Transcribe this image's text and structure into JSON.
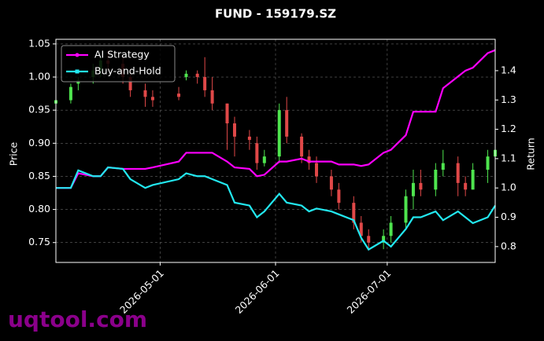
{
  "chart_data": {
    "type": "candlestick",
    "title": "FUND - 159179.SZ",
    "ylabel": "Price",
    "y2label": "Return",
    "x": [
      "2026-04-03",
      "2026-04-07",
      "2026-04-09",
      "2026-04-13",
      "2026-04-15",
      "2026-04-17",
      "2026-04-21",
      "2026-04-23",
      "2026-04-27",
      "2026-04-29",
      "2026-05-06",
      "2026-05-08",
      "2026-05-11",
      "2026-05-13",
      "2026-05-15",
      "2026-05-19",
      "2026-05-21",
      "2026-05-25",
      "2026-05-27",
      "2026-05-29",
      "2026-06-02",
      "2026-06-04",
      "2026-06-08",
      "2026-06-10",
      "2026-06-12",
      "2026-06-16",
      "2026-06-18",
      "2026-06-22",
      "2026-06-24",
      "2026-06-26",
      "2026-06-30",
      "2026-07-02",
      "2026-07-06",
      "2026-07-08",
      "2026-07-10",
      "2026-07-14",
      "2026-07-16",
      "2026-07-20",
      "2026-07-22",
      "2026-07-24",
      "2026-07-28",
      "2026-07-30"
    ],
    "open": [
      0.96,
      0.965,
      0.99,
      1.0,
      1.01,
      1.025,
      1.02,
      1.0,
      0.98,
      0.97,
      0.975,
      1.0,
      1.005,
      1.0,
      0.98,
      0.96,
      0.93,
      0.91,
      0.9,
      0.87,
      0.88,
      0.95,
      0.91,
      0.88,
      0.87,
      0.85,
      0.83,
      0.81,
      0.78,
      0.76,
      0.75,
      0.76,
      0.78,
      0.82,
      0.84,
      0.83,
      0.86,
      0.87,
      0.84,
      0.83,
      0.86,
      0.88
    ],
    "high": [
      0.97,
      0.99,
      1.0,
      1.02,
      1.03,
      1.04,
      1.03,
      1.01,
      0.99,
      0.98,
      0.985,
      1.01,
      1.01,
      1.03,
      1.0,
      0.96,
      0.94,
      0.92,
      0.91,
      0.89,
      0.96,
      0.97,
      0.915,
      0.89,
      0.88,
      0.86,
      0.84,
      0.82,
      0.79,
      0.77,
      0.77,
      0.79,
      0.83,
      0.86,
      0.86,
      0.87,
      0.89,
      0.88,
      0.85,
      0.87,
      0.89,
      0.9
    ],
    "low": [
      0.95,
      0.96,
      0.98,
      0.99,
      1.0,
      1.01,
      0.99,
      0.97,
      0.955,
      0.955,
      0.965,
      0.995,
      0.99,
      0.97,
      0.95,
      0.89,
      0.88,
      0.89,
      0.86,
      0.865,
      0.87,
      0.9,
      0.87,
      0.86,
      0.84,
      0.82,
      0.8,
      0.77,
      0.75,
      0.74,
      0.74,
      0.75,
      0.77,
      0.8,
      0.82,
      0.82,
      0.85,
      0.82,
      0.82,
      0.83,
      0.84,
      0.87
    ],
    "close": [
      0.965,
      0.985,
      0.995,
      1.01,
      1.025,
      1.02,
      1.0,
      0.98,
      0.97,
      0.965,
      0.97,
      1.005,
      1.0,
      0.98,
      0.96,
      0.93,
      0.91,
      0.905,
      0.87,
      0.88,
      0.95,
      0.91,
      0.88,
      0.87,
      0.85,
      0.83,
      0.81,
      0.78,
      0.76,
      0.75,
      0.76,
      0.78,
      0.82,
      0.84,
      0.83,
      0.86,
      0.87,
      0.84,
      0.83,
      0.86,
      0.88,
      0.89
    ],
    "up_color": "#4ee44e",
    "down_color": "#e04848",
    "series": [
      {
        "name": "AI Strategy",
        "color": "#ff00ff",
        "axis": "y2",
        "values": [
          1.0,
          1.0,
          1.05,
          1.04,
          1.04,
          1.07,
          1.065,
          1.065,
          1.065,
          1.07,
          1.09,
          1.12,
          1.12,
          1.12,
          1.12,
          1.09,
          1.07,
          1.065,
          1.04,
          1.045,
          1.09,
          1.09,
          1.1,
          1.09,
          1.09,
          1.09,
          1.08,
          1.08,
          1.075,
          1.08,
          1.12,
          1.13,
          1.18,
          1.26,
          1.26,
          1.26,
          1.34,
          1.38,
          1.4,
          1.41,
          1.46,
          1.47
        ]
      },
      {
        "name": "Buy-and-Hold",
        "color": "#22e8f0",
        "axis": "y2",
        "values": [
          1.0,
          1.0,
          1.06,
          1.04,
          1.04,
          1.07,
          1.065,
          1.03,
          1.0,
          1.01,
          1.03,
          1.05,
          1.04,
          1.04,
          1.03,
          1.01,
          0.95,
          0.94,
          0.9,
          0.92,
          0.98,
          0.95,
          0.94,
          0.92,
          0.93,
          0.92,
          0.91,
          0.89,
          0.83,
          0.79,
          0.82,
          0.8,
          0.86,
          0.9,
          0.9,
          0.92,
          0.89,
          0.92,
          0.9,
          0.88,
          0.9,
          0.94
        ]
      }
    ],
    "xlim": [
      "2026-04-03",
      "2026-07-30"
    ],
    "xticks": [
      "2026-05-01",
      "2026-06-01",
      "2026-07-01"
    ],
    "ylim": [
      0.72,
      1.057
    ],
    "yticks": [
      {
        "value": 0.75,
        "label": "0.75"
      },
      {
        "value": 0.8,
        "label": "0.80"
      },
      {
        "value": 0.85,
        "label": "0.85"
      },
      {
        "value": 0.9,
        "label": "0.90"
      },
      {
        "value": 0.95,
        "label": "0.95"
      },
      {
        "value": 1.0,
        "label": "1.00"
      },
      {
        "value": 1.05,
        "label": "1.05"
      }
    ],
    "y2lim": [
      0.746,
      1.507
    ],
    "y2ticks": [
      {
        "value": 0.8,
        "label": "0.8"
      },
      {
        "value": 0.9,
        "label": "0.9"
      },
      {
        "value": 1.0,
        "label": "1.0"
      },
      {
        "value": 1.1,
        "label": "1.1"
      },
      {
        "value": 1.2,
        "label": "1.2"
      },
      {
        "value": 1.3,
        "label": "1.3"
      },
      {
        "value": 1.4,
        "label": "1.4"
      }
    ],
    "grid": true,
    "legend": "upper left"
  },
  "watermark": "uqtool.com"
}
